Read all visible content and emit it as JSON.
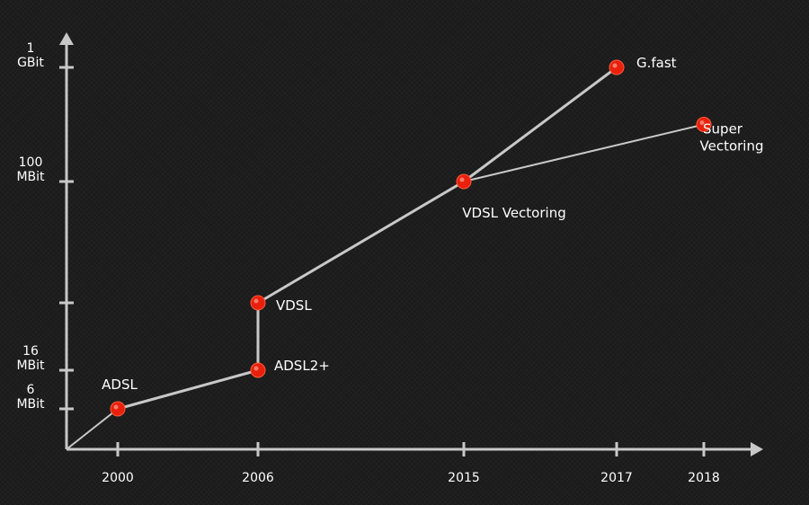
{
  "chart_data": {
    "type": "line",
    "title": "",
    "xlabel": "",
    "ylabel": "",
    "x_ticks": [
      "2000",
      "2006",
      "2015",
      "2017",
      "2018"
    ],
    "y_ticks": [
      {
        "lines": [
          "6",
          "MBit"
        ]
      },
      {
        "lines": [
          "16",
          "MBit"
        ]
      },
      {
        "lines": []
      },
      {
        "lines": [
          "100",
          "MBit"
        ]
      },
      {
        "lines": [
          "1",
          "GBit"
        ]
      }
    ],
    "points": [
      {
        "id": "adsl",
        "label": [
          "ADSL"
        ],
        "year": 2000,
        "level": 0
      },
      {
        "id": "adsl2plus",
        "label": [
          "ADSL2+"
        ],
        "year": 2006,
        "level": 1
      },
      {
        "id": "vdsl",
        "label": [
          "VDSL"
        ],
        "year": 2006,
        "level": 2
      },
      {
        "id": "vdsl-vectoring",
        "label": [
          "VDSL Vectoring"
        ],
        "year": 2015,
        "level": 3
      },
      {
        "id": "gfast",
        "label": [
          "G.fast"
        ],
        "year": 2017,
        "level": 4
      },
      {
        "id": "super-vectoring",
        "label": [
          "Super",
          "Vectoring"
        ],
        "year": 2018,
        "level": 3.5
      }
    ],
    "series": [
      {
        "values": [
          {
            "year": 2000,
            "level": 0
          },
          {
            "year": 2006,
            "level": 1
          },
          {
            "year": 2006,
            "level": 2
          },
          {
            "year": 2015,
            "level": 3
          },
          {
            "year": 2017,
            "level": 4
          }
        ]
      },
      {
        "values": [
          {
            "year": 2015,
            "level": 3
          },
          {
            "year": 2018,
            "level": 3.5
          }
        ]
      }
    ],
    "colors": {
      "line": "#c8c8c8",
      "point": "#e8200c",
      "axis": "#c8c8c8",
      "text": "#ffffff"
    }
  }
}
